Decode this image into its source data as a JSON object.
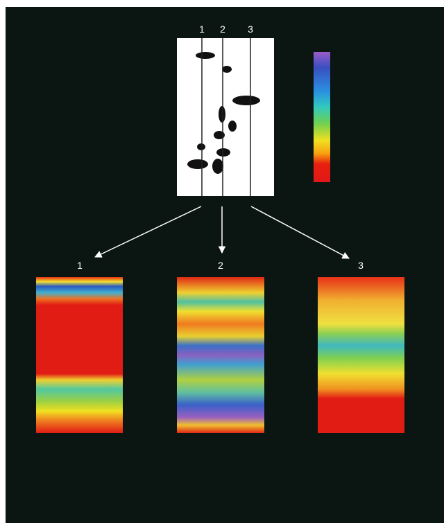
{
  "figure": {
    "line_labels": [
      "1",
      "2",
      "3"
    ],
    "panel_labels": [
      "1",
      "2",
      "3"
    ]
  }
}
